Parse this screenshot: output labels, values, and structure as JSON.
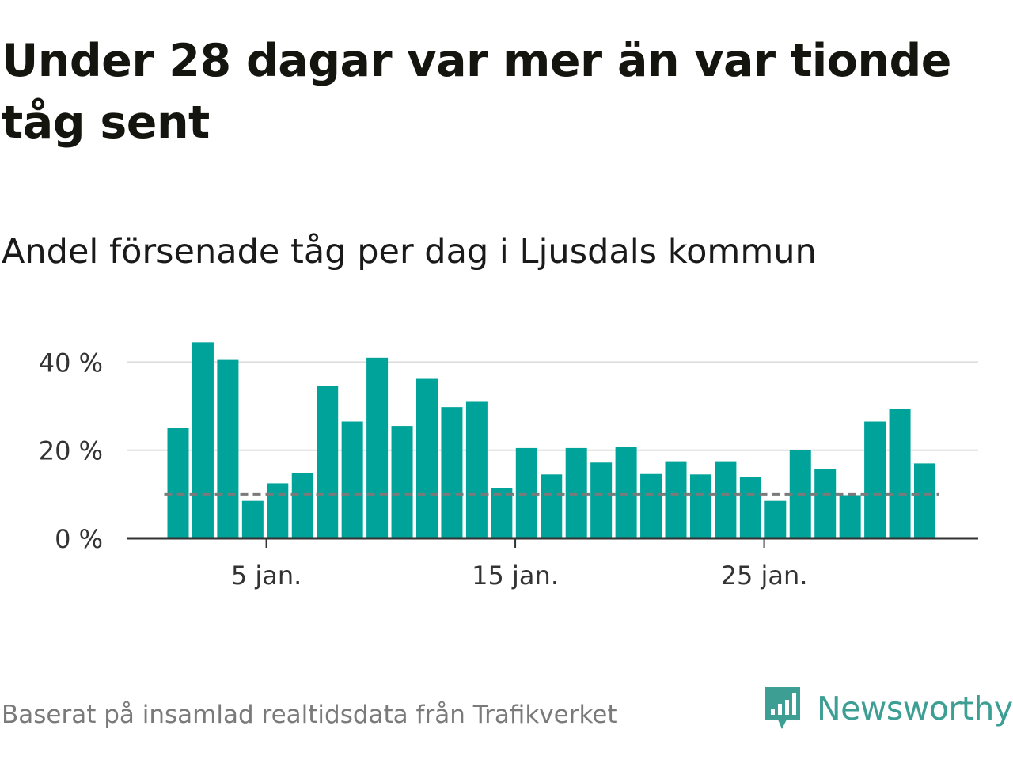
{
  "title": "Under 28 dagar var mer än var tionde tåg sent",
  "subtitle": "Andel försenade tåg per dag i Ljusdals kommun",
  "footer": "Baserat på insamlad realtidsdata från Trafikverket",
  "logo": {
    "text": "Newsworthy",
    "icon": "newsworthy-chart-bubble-icon",
    "color": "#3d9e94"
  },
  "chart_data": {
    "type": "bar",
    "x_unit": "day of January",
    "x": [
      1,
      2,
      3,
      4,
      5,
      6,
      7,
      8,
      9,
      10,
      11,
      12,
      13,
      14,
      15,
      16,
      17,
      18,
      19,
      20,
      21,
      22,
      23,
      24,
      25,
      26,
      27,
      28,
      29,
      30,
      31
    ],
    "values": [
      25,
      44.5,
      40.5,
      8.5,
      12.5,
      14.8,
      34.5,
      26.5,
      41,
      25.5,
      36.2,
      29.8,
      31,
      11.5,
      20.5,
      14.5,
      20.5,
      17.2,
      20.8,
      14.6,
      17.5,
      14.5,
      17.5,
      14,
      8.5,
      20,
      15.8,
      9.8,
      26.5,
      29.3,
      17
    ],
    "reference_line": {
      "value": 10,
      "style": "dashed"
    },
    "y_ticks": [
      {
        "value": 0,
        "label": "0 %"
      },
      {
        "value": 20,
        "label": "20 %"
      },
      {
        "value": 40,
        "label": "40 %"
      }
    ],
    "x_ticks": [
      {
        "value": 5,
        "label": "5 jan."
      },
      {
        "value": 15,
        "label": "15 jan."
      },
      {
        "value": 25,
        "label": "25 jan."
      }
    ],
    "ylim": [
      0,
      46
    ],
    "grid": true,
    "colors": {
      "bar": "#00a39a",
      "grid": "#dddddd",
      "axis": "#333333",
      "reference": "#7a7a7a"
    }
  }
}
